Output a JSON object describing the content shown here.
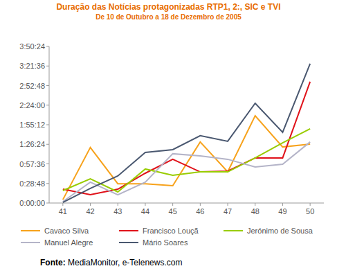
{
  "chart_data": {
    "type": "line",
    "title": "Duração das Notícias protagonizadas RTP1, 2:, SIC e TVI",
    "subtitle": "De 10 de Outubro a 18 de Dezembro de 2005",
    "source": "Fonte: MediaMonitor, e-Telenews.com",
    "categories": [
      "41",
      "42",
      "43",
      "44",
      "45",
      "46",
      "47",
      "48",
      "49",
      "50"
    ],
    "series": [
      {
        "name": "Cavaco Silva",
        "color": "#f7a21b",
        "values": [
          300,
          4900,
          1700,
          1700,
          1530,
          5390,
          2750,
          7700,
          4950,
          5200
        ]
      },
      {
        "name": "Francisco Louçã",
        "color": "#e0121a",
        "values": [
          1220,
          730,
          1220,
          2630,
          3860,
          2750,
          2820,
          3980,
          3980,
          10710
        ]
      },
      {
        "name": "Jerónimo de Sousa",
        "color": "#99cc00",
        "values": [
          1100,
          2140,
          980,
          3000,
          2450,
          2750,
          2750,
          3980,
          5320,
          6550
        ]
      },
      {
        "name": "Manuel Alegre",
        "color": "#b4b4c8",
        "values": [
          120,
          1840,
          730,
          1840,
          4350,
          4160,
          3860,
          3180,
          3430,
          5390
        ]
      },
      {
        "name": "Mário Soares",
        "color": "#4a5870",
        "values": [
          60,
          1290,
          2390,
          4470,
          4710,
          5940,
          5450,
          8810,
          6240,
          12300
        ]
      }
    ],
    "ylim": [
      0,
      13824
    ],
    "yticks": [
      {
        "value": 0,
        "label": "0:00:00"
      },
      {
        "value": 1728,
        "label": "0:28:48"
      },
      {
        "value": 3456,
        "label": "0:57:36"
      },
      {
        "value": 5184,
        "label": "1:26:24"
      },
      {
        "value": 6912,
        "label": "1:55:12"
      },
      {
        "value": 8640,
        "label": "2:24:00"
      },
      {
        "value": 10368,
        "label": "2:52:48"
      },
      {
        "value": 12096,
        "label": "3:21:36"
      },
      {
        "value": 13824,
        "label": "3:50:24"
      }
    ],
    "grid": false,
    "legend": "bottom"
  }
}
